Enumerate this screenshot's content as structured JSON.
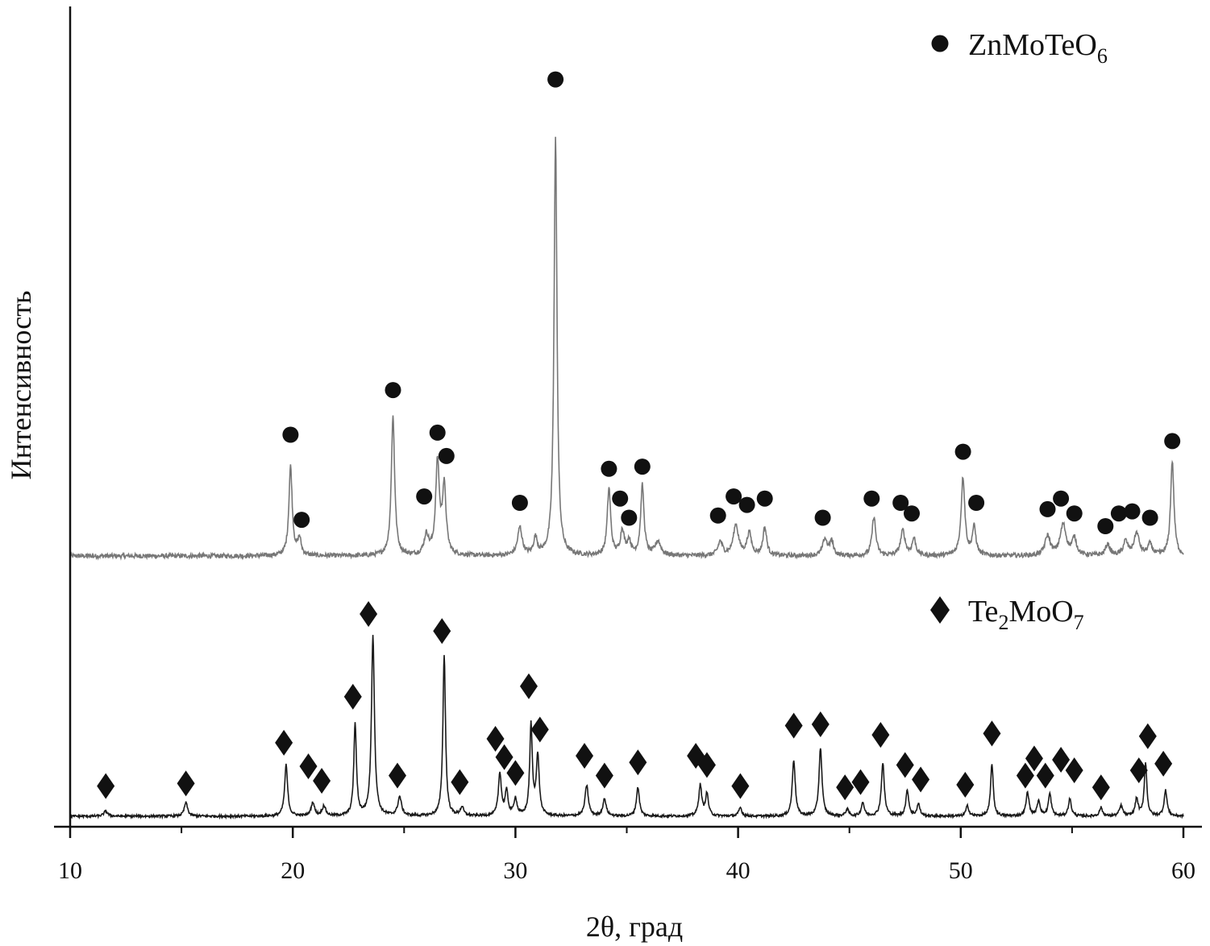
{
  "chart_data": {
    "type": "line",
    "xlabel": "2θ, град",
    "ylabel": "Интенсивность",
    "xlim": [
      10,
      60
    ],
    "x_ticks": [
      10,
      20,
      30,
      40,
      50,
      60
    ],
    "grid": false,
    "legend_placement": "inside, right of each pattern",
    "colors": {
      "ZnMoTeO6": "#777777",
      "Te2MoO7": "#1a1a1a",
      "markers": "#111111"
    },
    "series": [
      {
        "name": "ZnMoTeO6",
        "legend_label": {
          "base": "ZnMoTeO",
          "sub": "6"
        },
        "marker": "circle",
        "baseline": 10,
        "noise": 0.8,
        "peaks": [
          {
            "x": 19.9,
            "h": 32,
            "w": 0.09
          },
          {
            "x": 20.3,
            "h": 6,
            "w": 0.09
          },
          {
            "x": 24.5,
            "h": 50,
            "w": 0.09
          },
          {
            "x": 26.0,
            "h": 7,
            "w": 0.12
          },
          {
            "x": 26.5,
            "h": 33,
            "w": 0.1
          },
          {
            "x": 26.8,
            "h": 24,
            "w": 0.1
          },
          {
            "x": 30.2,
            "h": 10,
            "w": 0.12
          },
          {
            "x": 30.9,
            "h": 6,
            "w": 0.1
          },
          {
            "x": 31.8,
            "h": 150,
            "w": 0.08
          },
          {
            "x": 34.2,
            "h": 24,
            "w": 0.09
          },
          {
            "x": 34.8,
            "h": 9,
            "w": 0.1
          },
          {
            "x": 35.1,
            "h": 5,
            "w": 0.1
          },
          {
            "x": 35.7,
            "h": 25,
            "w": 0.09
          },
          {
            "x": 36.4,
            "h": 5,
            "w": 0.15
          },
          {
            "x": 39.2,
            "h": 5,
            "w": 0.12
          },
          {
            "x": 39.9,
            "h": 11,
            "w": 0.14
          },
          {
            "x": 40.5,
            "h": 8,
            "w": 0.12
          },
          {
            "x": 41.2,
            "h": 10,
            "w": 0.1
          },
          {
            "x": 43.9,
            "h": 6,
            "w": 0.12
          },
          {
            "x": 44.2,
            "h": 5,
            "w": 0.1
          },
          {
            "x": 46.1,
            "h": 14,
            "w": 0.1
          },
          {
            "x": 47.4,
            "h": 9,
            "w": 0.12
          },
          {
            "x": 47.9,
            "h": 6,
            "w": 0.1
          },
          {
            "x": 50.1,
            "h": 28,
            "w": 0.1
          },
          {
            "x": 50.6,
            "h": 10,
            "w": 0.1
          },
          {
            "x": 53.9,
            "h": 7,
            "w": 0.14
          },
          {
            "x": 54.6,
            "h": 11,
            "w": 0.16
          },
          {
            "x": 55.1,
            "h": 6,
            "w": 0.12
          },
          {
            "x": 56.6,
            "h": 4,
            "w": 0.12
          },
          {
            "x": 57.4,
            "h": 5,
            "w": 0.12
          },
          {
            "x": 57.9,
            "h": 8,
            "w": 0.14
          },
          {
            "x": 58.5,
            "h": 4,
            "w": 0.12
          },
          {
            "x": 59.5,
            "h": 34,
            "w": 0.09
          }
        ],
        "markers": [
          {
            "x": 19.9,
            "y": 57
          },
          {
            "x": 20.4,
            "y": 17
          },
          {
            "x": 24.5,
            "y": 78
          },
          {
            "x": 25.9,
            "y": 28
          },
          {
            "x": 26.5,
            "y": 58
          },
          {
            "x": 26.9,
            "y": 47
          },
          {
            "x": 30.2,
            "y": 25
          },
          {
            "x": 31.8,
            "y": 224
          },
          {
            "x": 34.2,
            "y": 41
          },
          {
            "x": 34.7,
            "y": 27
          },
          {
            "x": 35.1,
            "y": 18
          },
          {
            "x": 35.7,
            "y": 42
          },
          {
            "x": 39.1,
            "y": 19
          },
          {
            "x": 39.8,
            "y": 28
          },
          {
            "x": 40.4,
            "y": 24
          },
          {
            "x": 41.2,
            "y": 27
          },
          {
            "x": 43.8,
            "y": 18
          },
          {
            "x": 46.0,
            "y": 27
          },
          {
            "x": 47.3,
            "y": 25
          },
          {
            "x": 47.8,
            "y": 20
          },
          {
            "x": 50.1,
            "y": 49
          },
          {
            "x": 50.7,
            "y": 25
          },
          {
            "x": 53.9,
            "y": 22
          },
          {
            "x": 54.5,
            "y": 27
          },
          {
            "x": 55.1,
            "y": 20
          },
          {
            "x": 56.5,
            "y": 14
          },
          {
            "x": 57.1,
            "y": 20
          },
          {
            "x": 57.7,
            "y": 21
          },
          {
            "x": 58.5,
            "y": 18
          },
          {
            "x": 59.5,
            "y": 54
          }
        ]
      },
      {
        "name": "Te2MoO7",
        "legend_label": {
          "base": "Te",
          "sub1": "2",
          "mid": "MoO",
          "sub2": "7"
        },
        "marker": "diamond",
        "baseline": 4,
        "noise": 0.7,
        "peaks": [
          {
            "x": 11.6,
            "h": 3,
            "w": 0.1
          },
          {
            "x": 15.2,
            "h": 8,
            "w": 0.09
          },
          {
            "x": 19.7,
            "h": 30,
            "w": 0.08
          },
          {
            "x": 20.9,
            "h": 8,
            "w": 0.09
          },
          {
            "x": 21.4,
            "h": 6,
            "w": 0.09
          },
          {
            "x": 22.8,
            "h": 54,
            "w": 0.07
          },
          {
            "x": 23.6,
            "h": 106,
            "w": 0.08
          },
          {
            "x": 24.8,
            "h": 11,
            "w": 0.1
          },
          {
            "x": 26.8,
            "h": 95,
            "w": 0.07
          },
          {
            "x": 27.6,
            "h": 5,
            "w": 0.09
          },
          {
            "x": 29.3,
            "h": 25,
            "w": 0.08
          },
          {
            "x": 29.6,
            "h": 14,
            "w": 0.08
          },
          {
            "x": 30.0,
            "h": 10,
            "w": 0.08
          },
          {
            "x": 30.7,
            "h": 53,
            "w": 0.07
          },
          {
            "x": 31.0,
            "h": 35,
            "w": 0.08
          },
          {
            "x": 33.2,
            "h": 18,
            "w": 0.09
          },
          {
            "x": 34.0,
            "h": 10,
            "w": 0.09
          },
          {
            "x": 35.5,
            "h": 17,
            "w": 0.08
          },
          {
            "x": 38.3,
            "h": 18,
            "w": 0.08
          },
          {
            "x": 38.6,
            "h": 13,
            "w": 0.08
          },
          {
            "x": 40.1,
            "h": 5,
            "w": 0.08
          },
          {
            "x": 42.5,
            "h": 33,
            "w": 0.08
          },
          {
            "x": 43.7,
            "h": 40,
            "w": 0.08
          },
          {
            "x": 44.9,
            "h": 4,
            "w": 0.08
          },
          {
            "x": 45.6,
            "h": 8,
            "w": 0.08
          },
          {
            "x": 46.5,
            "h": 31,
            "w": 0.08
          },
          {
            "x": 47.6,
            "h": 15,
            "w": 0.08
          },
          {
            "x": 48.1,
            "h": 7,
            "w": 0.08
          },
          {
            "x": 50.3,
            "h": 6,
            "w": 0.08
          },
          {
            "x": 51.4,
            "h": 31,
            "w": 0.07
          },
          {
            "x": 53.0,
            "h": 14,
            "w": 0.08
          },
          {
            "x": 53.5,
            "h": 9,
            "w": 0.08
          },
          {
            "x": 54.0,
            "h": 13,
            "w": 0.08
          },
          {
            "x": 54.9,
            "h": 10,
            "w": 0.08
          },
          {
            "x": 56.3,
            "h": 5,
            "w": 0.08
          },
          {
            "x": 57.2,
            "h": 6,
            "w": 0.09
          },
          {
            "x": 57.9,
            "h": 10,
            "w": 0.08
          },
          {
            "x": 58.3,
            "h": 31,
            "w": 0.07
          },
          {
            "x": 59.2,
            "h": 15,
            "w": 0.08
          }
        ],
        "markers": [
          {
            "x": 11.6,
            "y": 23
          },
          {
            "x": 15.2,
            "y": 25
          },
          {
            "x": 19.6,
            "y": 56
          },
          {
            "x": 20.7,
            "y": 38
          },
          {
            "x": 21.3,
            "y": 27
          },
          {
            "x": 22.7,
            "y": 91
          },
          {
            "x": 23.4,
            "y": 154
          },
          {
            "x": 24.7,
            "y": 31
          },
          {
            "x": 26.7,
            "y": 141
          },
          {
            "x": 27.5,
            "y": 26
          },
          {
            "x": 29.1,
            "y": 59
          },
          {
            "x": 29.5,
            "y": 45
          },
          {
            "x": 30.0,
            "y": 33
          },
          {
            "x": 30.6,
            "y": 99
          },
          {
            "x": 31.1,
            "y": 66
          },
          {
            "x": 33.1,
            "y": 46
          },
          {
            "x": 34.0,
            "y": 31
          },
          {
            "x": 35.5,
            "y": 41
          },
          {
            "x": 38.1,
            "y": 46
          },
          {
            "x": 38.6,
            "y": 39
          },
          {
            "x": 40.1,
            "y": 23
          },
          {
            "x": 42.5,
            "y": 69
          },
          {
            "x": 43.7,
            "y": 70
          },
          {
            "x": 44.8,
            "y": 22
          },
          {
            "x": 45.5,
            "y": 26
          },
          {
            "x": 46.4,
            "y": 62
          },
          {
            "x": 47.5,
            "y": 39
          },
          {
            "x": 48.2,
            "y": 28
          },
          {
            "x": 50.2,
            "y": 24
          },
          {
            "x": 51.4,
            "y": 63
          },
          {
            "x": 52.9,
            "y": 31
          },
          {
            "x": 53.3,
            "y": 44
          },
          {
            "x": 53.8,
            "y": 31
          },
          {
            "x": 54.5,
            "y": 43
          },
          {
            "x": 55.1,
            "y": 35
          },
          {
            "x": 56.3,
            "y": 22
          },
          {
            "x": 58.0,
            "y": 35
          },
          {
            "x": 58.4,
            "y": 61
          },
          {
            "x": 59.1,
            "y": 40
          }
        ]
      }
    ]
  }
}
